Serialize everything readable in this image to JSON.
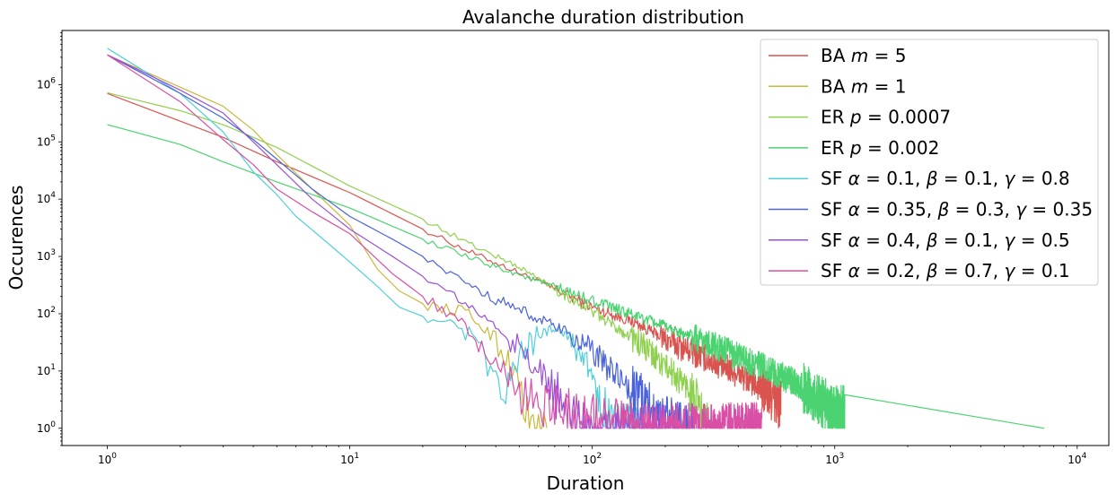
{
  "chart_data": {
    "type": "line",
    "title": "Avalanche duration distribution",
    "xlabel": "Duration",
    "ylabel": "Occurences",
    "xscale": "log",
    "yscale": "log",
    "xlim": [
      0.65,
      13500
    ],
    "ylim": [
      0.5,
      8800000
    ],
    "grid": false,
    "legend_position": "top-right",
    "x_ticks": [
      {
        "value": 1,
        "base": "10",
        "exp": "0"
      },
      {
        "value": 10,
        "base": "10",
        "exp": "1"
      },
      {
        "value": 100,
        "base": "10",
        "exp": "2"
      },
      {
        "value": 1000,
        "base": "10",
        "exp": "3"
      },
      {
        "value": 10000,
        "base": "10",
        "exp": "4"
      }
    ],
    "y_ticks": [
      {
        "value": 1,
        "base": "10",
        "exp": "0"
      },
      {
        "value": 10,
        "base": "10",
        "exp": "1"
      },
      {
        "value": 100,
        "base": "10",
        "exp": "2"
      },
      {
        "value": 1000,
        "base": "10",
        "exp": "3"
      },
      {
        "value": 10000,
        "base": "10",
        "exp": "4"
      },
      {
        "value": 100000,
        "base": "10",
        "exp": "5"
      },
      {
        "value": 1000000,
        "base": "10",
        "exp": "6"
      }
    ],
    "series": [
      {
        "name": "BA m = 5",
        "legend": {
          "prefix": "BA ",
          "parts": [
            {
              "t": "m",
              "i": true
            },
            {
              "t": " = 5",
              "i": false
            }
          ]
        },
        "color": "#d9534f",
        "points": [
          [
            1,
            700000
          ],
          [
            2,
            230000
          ],
          [
            3,
            120000
          ],
          [
            5,
            45000
          ],
          [
            10,
            13000
          ],
          [
            20,
            3000
          ],
          [
            30,
            1300
          ],
          [
            50,
            520
          ],
          [
            70,
            270
          ],
          [
            100,
            130
          ],
          [
            150,
            70
          ],
          [
            200,
            36
          ],
          [
            300,
            16
          ],
          [
            400,
            9
          ],
          [
            500,
            5
          ],
          [
            600,
            2.5
          ]
        ],
        "noise_end": 600,
        "tail_end": null
      },
      {
        "name": "BA m = 1",
        "legend": {
          "prefix": "BA ",
          "parts": [
            {
              "t": "m",
              "i": true
            },
            {
              "t": " = 1",
              "i": false
            }
          ]
        },
        "color": "#c8b93b",
        "points": [
          [
            1,
            3300000
          ],
          [
            2,
            900000
          ],
          [
            3,
            420000
          ],
          [
            4,
            160000
          ],
          [
            5,
            60000
          ],
          [
            7,
            15000
          ],
          [
            10,
            3500
          ],
          [
            13,
            600
          ],
          [
            16,
            250
          ],
          [
            20,
            150
          ],
          [
            25,
            120
          ],
          [
            30,
            110
          ],
          [
            35,
            60
          ],
          [
            40,
            35
          ],
          [
            45,
            15
          ],
          [
            50,
            6
          ],
          [
            55,
            1
          ]
        ],
        "noise_end": 65,
        "tail_end": null
      },
      {
        "name": "ER p = 0.0007",
        "legend": {
          "prefix": "ER ",
          "parts": [
            {
              "t": "p",
              "i": true
            },
            {
              "t": " = 0.0007",
              "i": false
            }
          ]
        },
        "color": "#8fd14f",
        "points": [
          [
            1,
            720000
          ],
          [
            2,
            350000
          ],
          [
            3,
            200000
          ],
          [
            5,
            80000
          ],
          [
            10,
            17000
          ],
          [
            20,
            4500
          ],
          [
            30,
            1800
          ],
          [
            50,
            650
          ],
          [
            70,
            280
          ],
          [
            100,
            110
          ],
          [
            150,
            35
          ],
          [
            200,
            12
          ],
          [
            250,
            5
          ],
          [
            300,
            1
          ]
        ],
        "noise_end": 300,
        "tail_end": null
      },
      {
        "name": "ER p = 0.002",
        "legend": {
          "prefix": "ER ",
          "parts": [
            {
              "t": "p",
              "i": true
            },
            {
              "t": " = 0.002",
              "i": false
            }
          ]
        },
        "color": "#4cd371",
        "points": [
          [
            1,
            200000
          ],
          [
            2,
            90000
          ],
          [
            3,
            45000
          ],
          [
            5,
            20000
          ],
          [
            10,
            7000
          ],
          [
            20,
            2000
          ],
          [
            30,
            1000
          ],
          [
            50,
            480
          ],
          [
            100,
            170
          ],
          [
            200,
            60
          ],
          [
            300,
            30
          ],
          [
            500,
            12
          ],
          [
            700,
            6
          ],
          [
            1000,
            2
          ]
        ],
        "noise_end": 1100,
        "tail_end": 7300
      },
      {
        "name": "SF α = 0.1, β = 0.1, γ = 0.8",
        "legend": {
          "prefix": "SF ",
          "parts": [
            {
              "t": "α",
              "i": true
            },
            {
              "t": " = 0.1, ",
              "i": false
            },
            {
              "t": "β",
              "i": true
            },
            {
              "t": " = 0.1, ",
              "i": false
            },
            {
              "t": "γ",
              "i": true
            },
            {
              "t": " = 0.8",
              "i": false
            }
          ]
        },
        "color": "#4fd0d9",
        "points": [
          [
            1,
            4300000
          ],
          [
            2,
            700000
          ],
          [
            3,
            150000
          ],
          [
            4,
            30000
          ],
          [
            5,
            12000
          ],
          [
            6,
            5000
          ],
          [
            8,
            1800
          ],
          [
            10,
            800
          ],
          [
            13,
            300
          ],
          [
            16,
            130
          ],
          [
            20,
            90
          ],
          [
            25,
            75
          ],
          [
            30,
            40
          ],
          [
            35,
            20
          ],
          [
            40,
            8
          ],
          [
            43,
            3
          ],
          [
            50,
            20
          ],
          [
            60,
            40
          ],
          [
            70,
            60
          ],
          [
            80,
            40
          ],
          [
            90,
            20
          ],
          [
            100,
            8
          ],
          [
            110,
            3
          ],
          [
            120,
            1
          ]
        ],
        "noise_end": 160,
        "tail_end": null
      },
      {
        "name": "SF α = 0.35, β = 0.3, γ = 0.35",
        "legend": {
          "prefix": "SF ",
          "parts": [
            {
              "t": "α",
              "i": true
            },
            {
              "t": " = 0.35, ",
              "i": false
            },
            {
              "t": "β",
              "i": true
            },
            {
              "t": " = 0.3, ",
              "i": false
            },
            {
              "t": "γ",
              "i": true
            },
            {
              "t": " = 0.35",
              "i": false
            }
          ]
        },
        "color": "#4a63d9",
        "points": [
          [
            1,
            3300000
          ],
          [
            2,
            700000
          ],
          [
            3,
            260000
          ],
          [
            4,
            110000
          ],
          [
            5,
            50000
          ],
          [
            7,
            15000
          ],
          [
            10,
            5000
          ],
          [
            15,
            2000
          ],
          [
            20,
            1000
          ],
          [
            30,
            350
          ],
          [
            40,
            180
          ],
          [
            50,
            120
          ],
          [
            60,
            80
          ],
          [
            70,
            60
          ],
          [
            80,
            45
          ],
          [
            100,
            22
          ],
          [
            120,
            10
          ],
          [
            150,
            4
          ],
          [
            200,
            1.5
          ],
          [
            250,
            1
          ]
        ],
        "noise_end": 260,
        "tail_end": null
      },
      {
        "name": "SF α = 0.4, β = 0.1, γ = 0.5",
        "legend": {
          "prefix": "SF ",
          "parts": [
            {
              "t": "α",
              "i": true
            },
            {
              "t": " = 0.4, ",
              "i": false
            },
            {
              "t": "β",
              "i": true
            },
            {
              "t": " = 0.1, ",
              "i": false
            },
            {
              "t": "γ",
              "i": true
            },
            {
              "t": " = 0.5",
              "i": false
            }
          ]
        },
        "color": "#9b4fd9",
        "points": [
          [
            1,
            3300000
          ],
          [
            2,
            800000
          ],
          [
            3,
            320000
          ],
          [
            4,
            100000
          ],
          [
            5,
            40000
          ],
          [
            7,
            10000
          ],
          [
            10,
            3000
          ],
          [
            15,
            1000
          ],
          [
            20,
            450
          ],
          [
            25,
            250
          ],
          [
            30,
            150
          ],
          [
            40,
            60
          ],
          [
            50,
            25
          ],
          [
            60,
            10
          ],
          [
            70,
            4
          ],
          [
            80,
            2
          ],
          [
            100,
            1
          ]
        ],
        "noise_end": 200,
        "tail_end": null
      },
      {
        "name": "SF α = 0.2, β = 0.7, γ = 0.1",
        "legend": {
          "prefix": "SF ",
          "parts": [
            {
              "t": "α",
              "i": true
            },
            {
              "t": " = 0.2, ",
              "i": false
            },
            {
              "t": "β",
              "i": true
            },
            {
              "t": " = 0.7, ",
              "i": false
            },
            {
              "t": "γ",
              "i": true
            },
            {
              "t": " = 0.1",
              "i": false
            }
          ]
        },
        "color": "#d94fa6",
        "points": [
          [
            1,
            3300000
          ],
          [
            2,
            500000
          ],
          [
            3,
            110000
          ],
          [
            4,
            40000
          ],
          [
            5,
            15000
          ],
          [
            7,
            6000
          ],
          [
            10,
            2500
          ],
          [
            15,
            500
          ],
          [
            20,
            200
          ],
          [
            25,
            110
          ],
          [
            30,
            60
          ],
          [
            35,
            30
          ],
          [
            40,
            15
          ],
          [
            50,
            5
          ],
          [
            60,
            3
          ],
          [
            80,
            2
          ],
          [
            100,
            1.5
          ],
          [
            150,
            1
          ]
        ],
        "noise_end": 500,
        "tail_end": null
      }
    ]
  }
}
